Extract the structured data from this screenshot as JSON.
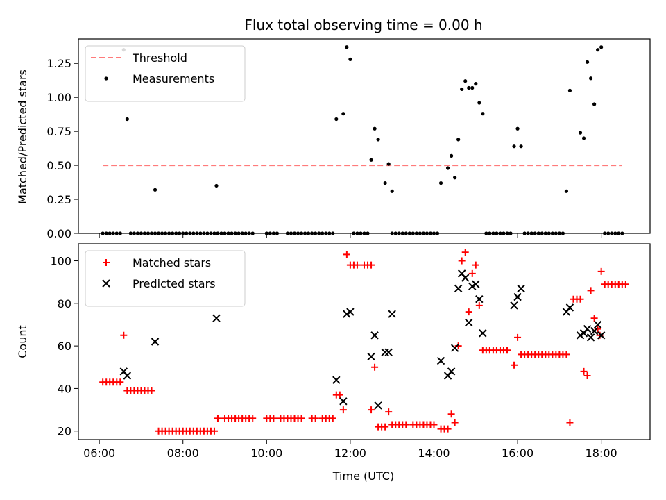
{
  "chart_data": [
    {
      "type": "scatter",
      "title": "Flux total observing time = 0.00 h",
      "xlabel": "",
      "ylabel": "Matched/Predicted stars",
      "xlim": [
        "05:30",
        "19:10"
      ],
      "ylim": [
        0,
        1.43
      ],
      "y_ticks": [
        0.0,
        0.25,
        0.5,
        0.75,
        1.0,
        1.25
      ],
      "y_tick_labels": [
        "0.00",
        "0.25",
        "0.50",
        "0.75",
        "1.00",
        "1.25"
      ],
      "legend_position": "top-left",
      "series": [
        {
          "name": "Threshold",
          "kind": "dashed-line",
          "color": "#ff7b7b",
          "x": [
            "06:05",
            "18:30"
          ],
          "y": [
            0.5,
            0.5
          ]
        },
        {
          "name": "Measurements",
          "kind": "dots",
          "color": "#000000",
          "points": [
            [
              "06:35",
              1.35
            ],
            [
              "06:40",
              0.84
            ],
            [
              "07:20",
              0.32
            ],
            [
              "08:48",
              0.35
            ],
            [
              "11:40",
              0.84
            ],
            [
              "11:50",
              0.88
            ],
            [
              "11:55",
              1.37
            ],
            [
              "12:00",
              1.28
            ],
            [
              "12:30",
              0.54
            ],
            [
              "12:35",
              0.77
            ],
            [
              "12:40",
              0.69
            ],
            [
              "12:50",
              0.37
            ],
            [
              "12:55",
              0.51
            ],
            [
              "13:00",
              0.31
            ],
            [
              "14:10",
              0.37
            ],
            [
              "14:20",
              0.48
            ],
            [
              "14:25",
              0.57
            ],
            [
              "14:30",
              0.41
            ],
            [
              "14:35",
              0.69
            ],
            [
              "14:40",
              1.06
            ],
            [
              "14:45",
              1.12
            ],
            [
              "14:50",
              1.07
            ],
            [
              "14:55",
              1.07
            ],
            [
              "15:00",
              1.1
            ],
            [
              "15:05",
              0.96
            ],
            [
              "15:10",
              0.88
            ],
            [
              "15:55",
              0.64
            ],
            [
              "16:00",
              0.77
            ],
            [
              "16:05",
              0.64
            ],
            [
              "17:10",
              0.31
            ],
            [
              "17:15",
              1.05
            ],
            [
              "17:30",
              0.74
            ],
            [
              "17:35",
              0.7
            ],
            [
              "17:40",
              1.26
            ],
            [
              "17:45",
              1.14
            ],
            [
              "17:50",
              0.95
            ],
            [
              "17:55",
              1.35
            ],
            [
              "18:00",
              1.37
            ]
          ],
          "zero_ranges": [
            [
              "06:05",
              "06:30"
            ],
            [
              "06:45",
              "07:20"
            ],
            [
              "07:25",
              "08:45"
            ],
            [
              "08:50",
              "09:40"
            ],
            [
              "10:00",
              "10:15"
            ],
            [
              "10:30",
              "11:35"
            ],
            [
              "12:05",
              "12:25"
            ],
            [
              "13:00",
              "14:05"
            ],
            [
              "15:15",
              "15:50"
            ],
            [
              "16:10",
              "17:05"
            ],
            [
              "18:05",
              "18:30"
            ]
          ]
        }
      ]
    },
    {
      "type": "scatter",
      "title": "",
      "xlabel": "Time (UTC)",
      "ylabel": "Count",
      "xlim": [
        "05:30",
        "19:10"
      ],
      "ylim": [
        16,
        108
      ],
      "x_ticks": [
        "06:00",
        "08:00",
        "10:00",
        "12:00",
        "14:00",
        "16:00",
        "18:00"
      ],
      "y_ticks": [
        20,
        40,
        60,
        80,
        100
      ],
      "y_tick_labels": [
        "20",
        "40",
        "60",
        "80",
        "100"
      ],
      "legend_position": "top-left",
      "series": [
        {
          "name": "Matched stars",
          "marker": "plus",
          "color": "#ff0000",
          "points": [
            [
              "06:05",
              43
            ],
            [
              "06:10",
              43
            ],
            [
              "06:15",
              43
            ],
            [
              "06:20",
              43
            ],
            [
              "06:25",
              43
            ],
            [
              "06:30",
              43
            ],
            [
              "06:35",
              65
            ],
            [
              "06:40",
              39
            ],
            [
              "06:45",
              39
            ],
            [
              "06:50",
              39
            ],
            [
              "06:55",
              39
            ],
            [
              "07:00",
              39
            ],
            [
              "07:05",
              39
            ],
            [
              "07:10",
              39
            ],
            [
              "07:15",
              39
            ],
            [
              "07:25",
              20
            ],
            [
              "07:30",
              20
            ],
            [
              "07:35",
              20
            ],
            [
              "07:40",
              20
            ],
            [
              "07:45",
              20
            ],
            [
              "07:50",
              20
            ],
            [
              "07:55",
              20
            ],
            [
              "08:00",
              20
            ],
            [
              "08:05",
              20
            ],
            [
              "08:10",
              20
            ],
            [
              "08:15",
              20
            ],
            [
              "08:20",
              20
            ],
            [
              "08:25",
              20
            ],
            [
              "08:30",
              20
            ],
            [
              "08:35",
              20
            ],
            [
              "08:40",
              20
            ],
            [
              "08:45",
              20
            ],
            [
              "08:50",
              26
            ],
            [
              "09:00",
              26
            ],
            [
              "09:05",
              26
            ],
            [
              "09:10",
              26
            ],
            [
              "09:15",
              26
            ],
            [
              "09:20",
              26
            ],
            [
              "09:25",
              26
            ],
            [
              "09:30",
              26
            ],
            [
              "09:35",
              26
            ],
            [
              "09:40",
              26
            ],
            [
              "10:00",
              26
            ],
            [
              "10:05",
              26
            ],
            [
              "10:10",
              26
            ],
            [
              "10:20",
              26
            ],
            [
              "10:25",
              26
            ],
            [
              "10:30",
              26
            ],
            [
              "10:35",
              26
            ],
            [
              "10:40",
              26
            ],
            [
              "10:45",
              26
            ],
            [
              "10:50",
              26
            ],
            [
              "11:05",
              26
            ],
            [
              "11:10",
              26
            ],
            [
              "11:20",
              26
            ],
            [
              "11:25",
              26
            ],
            [
              "11:30",
              26
            ],
            [
              "11:35",
              26
            ],
            [
              "11:40",
              37
            ],
            [
              "11:45",
              37
            ],
            [
              "11:50",
              30
            ],
            [
              "11:55",
              103
            ],
            [
              "12:00",
              98
            ],
            [
              "12:05",
              98
            ],
            [
              "12:10",
              98
            ],
            [
              "12:20",
              98
            ],
            [
              "12:25",
              98
            ],
            [
              "12:30",
              98
            ],
            [
              "12:30",
              30
            ],
            [
              "12:35",
              50
            ],
            [
              "12:40",
              22
            ],
            [
              "12:45",
              22
            ],
            [
              "12:50",
              22
            ],
            [
              "12:55",
              29
            ],
            [
              "13:00",
              23
            ],
            [
              "13:05",
              23
            ],
            [
              "13:10",
              23
            ],
            [
              "13:15",
              23
            ],
            [
              "13:20",
              23
            ],
            [
              "13:30",
              23
            ],
            [
              "13:35",
              23
            ],
            [
              "13:40",
              23
            ],
            [
              "13:45",
              23
            ],
            [
              "13:50",
              23
            ],
            [
              "13:55",
              23
            ],
            [
              "14:00",
              23
            ],
            [
              "14:10",
              21
            ],
            [
              "14:15",
              21
            ],
            [
              "14:20",
              21
            ],
            [
              "14:25",
              28
            ],
            [
              "14:30",
              24
            ],
            [
              "14:35",
              60
            ],
            [
              "14:40",
              100
            ],
            [
              "14:45",
              104
            ],
            [
              "14:50",
              76
            ],
            [
              "14:55",
              94
            ],
            [
              "15:00",
              98
            ],
            [
              "15:05",
              79
            ],
            [
              "15:10",
              58
            ],
            [
              "15:15",
              58
            ],
            [
              "15:20",
              58
            ],
            [
              "15:25",
              58
            ],
            [
              "15:30",
              58
            ],
            [
              "15:35",
              58
            ],
            [
              "15:40",
              58
            ],
            [
              "15:45",
              58
            ],
            [
              "15:55",
              51
            ],
            [
              "16:00",
              64
            ],
            [
              "16:05",
              56
            ],
            [
              "16:10",
              56
            ],
            [
              "16:15",
              56
            ],
            [
              "16:20",
              56
            ],
            [
              "16:25",
              56
            ],
            [
              "16:30",
              56
            ],
            [
              "16:35",
              56
            ],
            [
              "16:40",
              56
            ],
            [
              "16:45",
              56
            ],
            [
              "16:50",
              56
            ],
            [
              "16:55",
              56
            ],
            [
              "17:00",
              56
            ],
            [
              "17:05",
              56
            ],
            [
              "17:10",
              56
            ],
            [
              "17:15",
              24
            ],
            [
              "17:20",
              82
            ],
            [
              "17:25",
              82
            ],
            [
              "17:30",
              82
            ],
            [
              "17:35",
              48
            ],
            [
              "17:40",
              46
            ],
            [
              "17:45",
              86
            ],
            [
              "17:50",
              73
            ],
            [
              "17:55",
              68
            ],
            [
              "17:58",
              65
            ],
            [
              "18:00",
              95
            ],
            [
              "18:05",
              89
            ],
            [
              "18:10",
              89
            ],
            [
              "18:15",
              89
            ],
            [
              "18:20",
              89
            ],
            [
              "18:25",
              89
            ],
            [
              "18:30",
              89
            ],
            [
              "18:35",
              89
            ]
          ]
        },
        {
          "name": "Predicted stars",
          "marker": "x",
          "color": "#000000",
          "points": [
            [
              "06:35",
              48
            ],
            [
              "06:40",
              46
            ],
            [
              "07:20",
              62
            ],
            [
              "08:48",
              73
            ],
            [
              "11:40",
              44
            ],
            [
              "11:50",
              34
            ],
            [
              "11:55",
              75
            ],
            [
              "12:00",
              76
            ],
            [
              "12:30",
              55
            ],
            [
              "12:35",
              65
            ],
            [
              "12:40",
              32
            ],
            [
              "12:50",
              57
            ],
            [
              "12:55",
              57
            ],
            [
              "13:00",
              75
            ],
            [
              "14:10",
              53
            ],
            [
              "14:20",
              46
            ],
            [
              "14:25",
              48
            ],
            [
              "14:30",
              59
            ],
            [
              "14:35",
              87
            ],
            [
              "14:40",
              94
            ],
            [
              "14:45",
              92
            ],
            [
              "14:50",
              71
            ],
            [
              "14:55",
              88
            ],
            [
              "15:00",
              89
            ],
            [
              "15:05",
              82
            ],
            [
              "15:10",
              66
            ],
            [
              "15:55",
              79
            ],
            [
              "16:00",
              83
            ],
            [
              "16:05",
              87
            ],
            [
              "17:10",
              76
            ],
            [
              "17:15",
              78
            ],
            [
              "17:30",
              65
            ],
            [
              "17:35",
              66
            ],
            [
              "17:40",
              68
            ],
            [
              "17:45",
              64
            ],
            [
              "17:50",
              67
            ],
            [
              "17:55",
              70
            ],
            [
              "18:00",
              65
            ]
          ]
        }
      ]
    }
  ]
}
